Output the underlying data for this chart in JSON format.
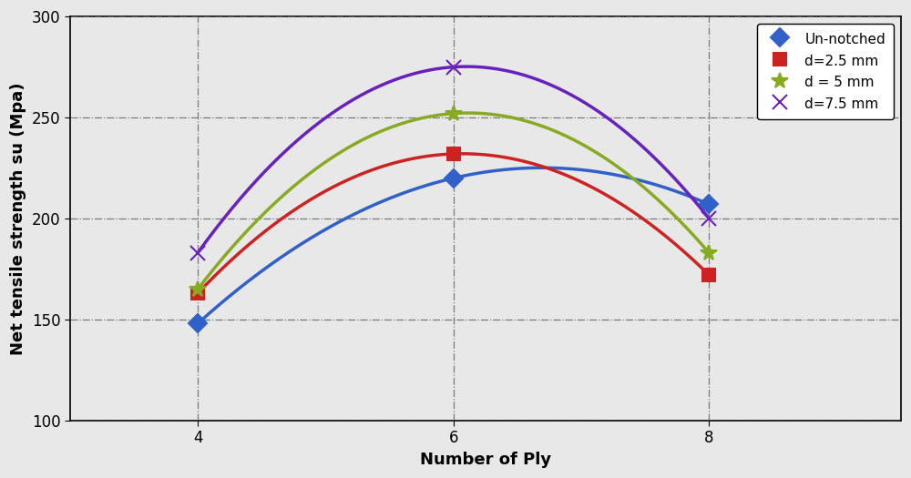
{
  "x": [
    4,
    6,
    8
  ],
  "series": [
    {
      "label": "Un-notched",
      "values": [
        148,
        220,
        207
      ],
      "color": "#3060c8",
      "marker": "D",
      "markersize": 10,
      "zorder": 4,
      "markerfacecolor": "#3060c8"
    },
    {
      "label": "d=2.5 mm",
      "values": [
        163,
        232,
        172
      ],
      "color": "#cc2222",
      "marker": "s",
      "markersize": 10,
      "zorder": 4,
      "markerfacecolor": "#cc2222"
    },
    {
      "label": "d = 5 mm",
      "values": [
        165,
        252,
        183
      ],
      "color": "#88aa22",
      "marker": "*",
      "markersize": 13,
      "zorder": 4,
      "markerfacecolor": "#88aa22"
    },
    {
      "label": "d=7.5 mm",
      "values": [
        183,
        275,
        200
      ],
      "color": "#6622bb",
      "marker": "x",
      "markersize": 12,
      "zorder": 4,
      "markerfacecolor": "#6622bb"
    }
  ],
  "xlabel": "Number of Ply",
  "ylabel": "Net tensile strength su (Mpa)",
  "xlim": [
    3.0,
    9.5
  ],
  "ylim": [
    100,
    300
  ],
  "yticks": [
    100,
    150,
    200,
    250,
    300
  ],
  "xticks": [
    4,
    6,
    8
  ],
  "grid_color": "#666666",
  "background_color": "#e8e8e8",
  "plot_bg_color": "#e8e8e8",
  "legend_loc": "upper right",
  "axis_label_fontsize": 13,
  "tick_fontsize": 12,
  "legend_fontsize": 11,
  "linewidth": 2.5
}
